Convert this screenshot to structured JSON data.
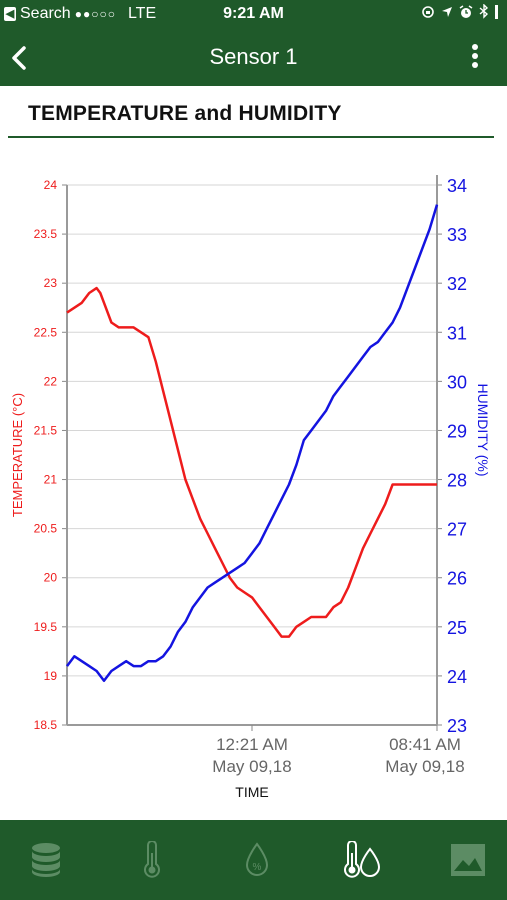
{
  "status_bar": {
    "carrier": "Search",
    "network": "LTE",
    "time": "9:21 AM"
  },
  "nav": {
    "title": "Sensor 1"
  },
  "page": {
    "title": "TEMPERATURE and HUMIDITY"
  },
  "colors": {
    "header": "#1f5a2a",
    "temperature": "#ee1c1c",
    "humidity": "#1414e0",
    "tab_inactive": "#5c8c64",
    "tab_active": "#ffffff"
  },
  "tabs": [
    {
      "icon": "database-icon",
      "active": false
    },
    {
      "icon": "thermometer-icon",
      "active": false
    },
    {
      "icon": "humidity-drop-icon",
      "active": false
    },
    {
      "icon": "thermometer-drop-icon",
      "active": true
    },
    {
      "icon": "image-icon",
      "active": false
    }
  ],
  "chart_data": {
    "type": "line",
    "xlabel": "TIME",
    "x_ticks": [
      {
        "time": "12:21 AM",
        "date": "May 09,18",
        "pos": 0.5
      },
      {
        "time": "08:41 AM",
        "date": "May 09,18",
        "pos": 1.0
      }
    ],
    "y_left": {
      "label": "TEMPERATURE (°C)",
      "ylim": [
        18.5,
        24
      ],
      "ticks": [
        "24",
        "23.5",
        "23",
        "22.5",
        "22",
        "21.5",
        "21",
        "20.5",
        "20",
        "19.5",
        "19",
        "18.5"
      ]
    },
    "y_right": {
      "label": "HUMIDITY (%)",
      "ylim": [
        23,
        34
      ],
      "ticks": [
        "34",
        "33",
        "32",
        "31",
        "30",
        "29",
        "28",
        "27",
        "26",
        "25",
        "24",
        "23"
      ]
    },
    "grid": true,
    "series": [
      {
        "name": "TEMPERATURE (°C)",
        "axis": "left",
        "x": [
          0,
          0.02,
          0.04,
          0.06,
          0.08,
          0.09,
          0.1,
          0.12,
          0.14,
          0.16,
          0.18,
          0.2,
          0.22,
          0.24,
          0.26,
          0.28,
          0.3,
          0.32,
          0.34,
          0.36,
          0.38,
          0.4,
          0.42,
          0.44,
          0.46,
          0.48,
          0.5,
          0.52,
          0.54,
          0.56,
          0.58,
          0.6,
          0.62,
          0.64,
          0.66,
          0.68,
          0.7,
          0.72,
          0.74,
          0.76,
          0.78,
          0.8,
          0.82,
          0.84,
          0.86,
          0.88,
          0.9,
          0.92,
          0.94,
          0.96,
          0.98,
          1.0
        ],
        "values": [
          22.7,
          22.75,
          22.8,
          22.9,
          22.95,
          22.9,
          22.8,
          22.6,
          22.55,
          22.55,
          22.55,
          22.5,
          22.45,
          22.2,
          21.9,
          21.6,
          21.3,
          21.0,
          20.8,
          20.6,
          20.45,
          20.3,
          20.15,
          20.0,
          19.9,
          19.85,
          19.8,
          19.7,
          19.6,
          19.5,
          19.4,
          19.4,
          19.5,
          19.55,
          19.6,
          19.6,
          19.6,
          19.7,
          19.75,
          19.9,
          20.1,
          20.3,
          20.45,
          20.6,
          20.75,
          20.95,
          20.95,
          20.95,
          20.95,
          20.95,
          20.95,
          20.95
        ]
      },
      {
        "name": "HUMIDITY (%)",
        "axis": "right",
        "x": [
          0,
          0.02,
          0.04,
          0.06,
          0.08,
          0.1,
          0.12,
          0.14,
          0.16,
          0.18,
          0.2,
          0.22,
          0.24,
          0.26,
          0.28,
          0.3,
          0.32,
          0.34,
          0.36,
          0.38,
          0.4,
          0.42,
          0.44,
          0.46,
          0.48,
          0.5,
          0.52,
          0.54,
          0.56,
          0.58,
          0.6,
          0.62,
          0.64,
          0.66,
          0.68,
          0.7,
          0.72,
          0.74,
          0.76,
          0.78,
          0.8,
          0.82,
          0.84,
          0.86,
          0.88,
          0.9,
          0.92,
          0.94,
          0.96,
          0.98,
          1.0
        ],
        "values": [
          24.2,
          24.4,
          24.3,
          24.2,
          24.1,
          23.9,
          24.1,
          24.2,
          24.3,
          24.2,
          24.2,
          24.3,
          24.3,
          24.4,
          24.6,
          24.9,
          25.1,
          25.4,
          25.6,
          25.8,
          25.9,
          26.0,
          26.1,
          26.2,
          26.3,
          26.5,
          26.7,
          27.0,
          27.3,
          27.6,
          27.9,
          28.3,
          28.8,
          29.0,
          29.2,
          29.4,
          29.7,
          29.9,
          30.1,
          30.3,
          30.5,
          30.7,
          30.8,
          31.0,
          31.2,
          31.5,
          31.9,
          32.3,
          32.7,
          33.1,
          33.6
        ]
      }
    ]
  }
}
